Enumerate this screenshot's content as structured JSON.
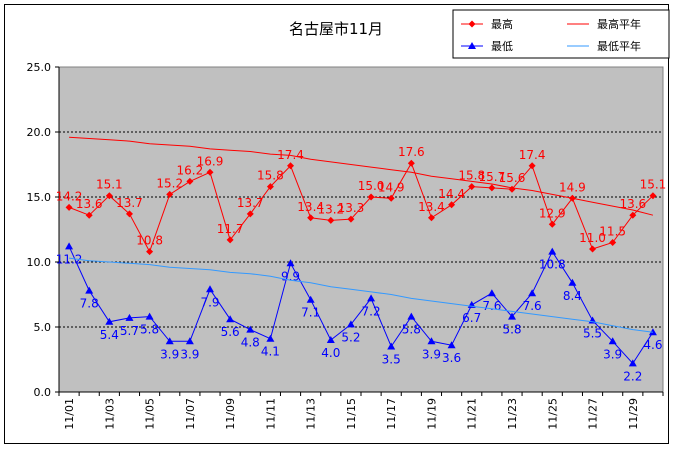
{
  "chart_data": {
    "type": "line",
    "title": "名古屋市11月",
    "xlabel": "",
    "ylabel": "",
    "ylim": [
      0,
      25
    ],
    "yticks": [
      "0.0",
      "5.0",
      "10.0",
      "15.0",
      "20.0",
      "25.0"
    ],
    "categories": [
      "11/01",
      "11/02",
      "11/03",
      "11/04",
      "11/05",
      "11/06",
      "11/07",
      "11/08",
      "11/09",
      "11/10",
      "11/11",
      "11/12",
      "11/13",
      "11/14",
      "11/15",
      "11/16",
      "11/17",
      "11/18",
      "11/19",
      "11/20",
      "11/21",
      "11/22",
      "11/23",
      "11/24",
      "11/25",
      "11/26",
      "11/27",
      "11/28",
      "11/29",
      "11/30"
    ],
    "xtick_labels": [
      "11/01",
      "11/03",
      "11/05",
      "11/07",
      "11/09",
      "11/11",
      "11/13",
      "11/15",
      "11/17",
      "11/19",
      "11/21",
      "11/23",
      "11/25",
      "11/27",
      "11/29"
    ],
    "grid": true,
    "plot_background": "#c0c0c0",
    "legend_position": "top-right",
    "series": [
      {
        "name": "最高",
        "color": "#ff0000",
        "marker": "diamond",
        "show_labels": true,
        "values": [
          14.2,
          13.6,
          15.1,
          13.7,
          10.8,
          15.2,
          16.2,
          16.9,
          11.7,
          13.7,
          15.8,
          17.4,
          13.4,
          13.2,
          13.3,
          15.0,
          14.9,
          17.6,
          13.4,
          14.4,
          15.8,
          15.7,
          15.6,
          17.4,
          12.9,
          14.9,
          11.0,
          11.5,
          13.6,
          15.1
        ]
      },
      {
        "name": "最高平年",
        "color": "#ff0000",
        "marker": "none",
        "show_labels": false,
        "values": [
          19.6,
          19.5,
          19.4,
          19.3,
          19.1,
          19.0,
          18.9,
          18.7,
          18.6,
          18.5,
          18.3,
          18.2,
          17.9,
          17.7,
          17.5,
          17.3,
          17.1,
          16.9,
          16.6,
          16.4,
          16.2,
          16.0,
          15.7,
          15.5,
          15.2,
          14.9,
          14.6,
          14.3,
          14.0,
          13.6
        ]
      },
      {
        "name": "最低",
        "color": "#0000ff",
        "marker": "triangle",
        "show_labels": true,
        "values": [
          11.2,
          7.8,
          5.4,
          5.7,
          5.8,
          3.9,
          3.9,
          7.9,
          5.6,
          4.8,
          4.1,
          9.9,
          7.1,
          4.0,
          5.2,
          7.2,
          3.5,
          5.8,
          3.9,
          3.6,
          6.7,
          7.6,
          5.8,
          7.6,
          10.8,
          8.4,
          5.5,
          3.9,
          2.2,
          4.6
        ]
      },
      {
        "name": "最低平年",
        "color": "#3399ff",
        "marker": "none",
        "show_labels": false,
        "values": [
          10.3,
          10.1,
          10.0,
          9.9,
          9.8,
          9.6,
          9.5,
          9.4,
          9.2,
          9.1,
          8.9,
          8.6,
          8.4,
          8.1,
          7.9,
          7.7,
          7.5,
          7.2,
          7.0,
          6.8,
          6.6,
          6.4,
          6.2,
          6.0,
          5.8,
          5.6,
          5.4,
          5.1,
          4.8,
          4.6
        ]
      }
    ]
  }
}
